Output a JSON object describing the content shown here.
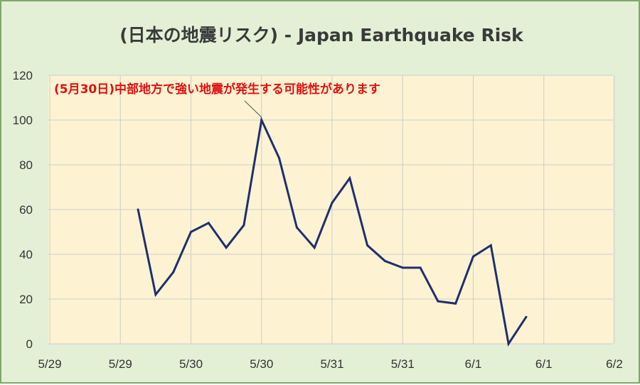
{
  "chart_data": {
    "type": "line",
    "title": "(日本の地震リスク) - Japan Earthquake Risk",
    "xlabel": "",
    "ylabel": "",
    "ylim": [
      0,
      120
    ],
    "yticks": [
      0,
      20,
      40,
      60,
      80,
      100,
      120
    ],
    "xtick_labels": [
      "5/29",
      "5/29",
      "5/30",
      "5/30",
      "5/31",
      "5/31",
      "6/1",
      "6/1",
      "6/2"
    ],
    "grid": true,
    "legend": "none",
    "series": [
      {
        "color": "#1f2f6e",
        "values": [
          60,
          22,
          32,
          50,
          54,
          43,
          53,
          100,
          83,
          52,
          43,
          63,
          74,
          44,
          37,
          34,
          34,
          19,
          18,
          39,
          44,
          0,
          12
        ]
      }
    ],
    "x_start_index": 5,
    "x_step_per_tick": 4,
    "annotation": {
      "text_date": "(5月30日)",
      "text_rest": "中部地方で強い地震が発生する可能性があります",
      "point_index": 7,
      "color": "#e01010"
    },
    "colors": {
      "plot_background": "#fdf3d2",
      "frame_background": "#e3f0d6",
      "grid": "#cccccc",
      "line": "#1f2f6e"
    }
  }
}
